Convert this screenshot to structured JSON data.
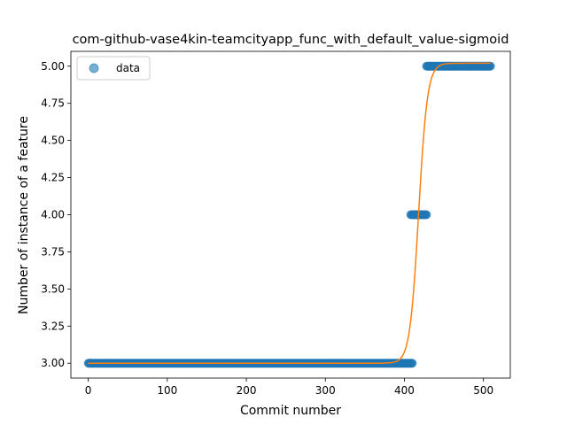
{
  "chart_data": {
    "type": "scatter",
    "title": "com-github-vase4kin-teamcityapp_func_with_default_value-sigmoid",
    "xlabel": "Commit number",
    "ylabel": "Number of instance of a feature",
    "xlim": [
      -22,
      534
    ],
    "ylim": [
      2.9,
      5.1
    ],
    "xticks": [
      0,
      100,
      200,
      300,
      400,
      500
    ],
    "yticks": [
      3.0,
      3.25,
      3.5,
      3.75,
      4.0,
      4.25,
      4.5,
      4.75,
      5.0
    ],
    "xtick_labels": [
      "0",
      "100",
      "200",
      "300",
      "400",
      "500"
    ],
    "ytick_labels": [
      "3.00",
      "3.25",
      "3.50",
      "3.75",
      "4.00",
      "4.25",
      "4.50",
      "4.75",
      "5.00"
    ],
    "legend": {
      "position": "top-left",
      "entries": [
        "data"
      ]
    },
    "grid": false,
    "series": [
      {
        "name": "data",
        "kind": "points",
        "color": "#1f77b4",
        "segments": [
          {
            "x_start": 0,
            "x_end": 410,
            "y": 3.0
          },
          {
            "x_start": 408,
            "x_end": 428,
            "y": 4.0
          },
          {
            "x_start": 428,
            "x_end": 509,
            "y": 5.0
          }
        ]
      },
      {
        "kind": "fit-line",
        "color": "#ff7f0e",
        "model": "sigmoid",
        "params": {
          "low": 3.0,
          "high": 5.02,
          "x0": 418,
          "k": 0.18
        },
        "x_range": [
          0,
          509
        ]
      }
    ]
  }
}
